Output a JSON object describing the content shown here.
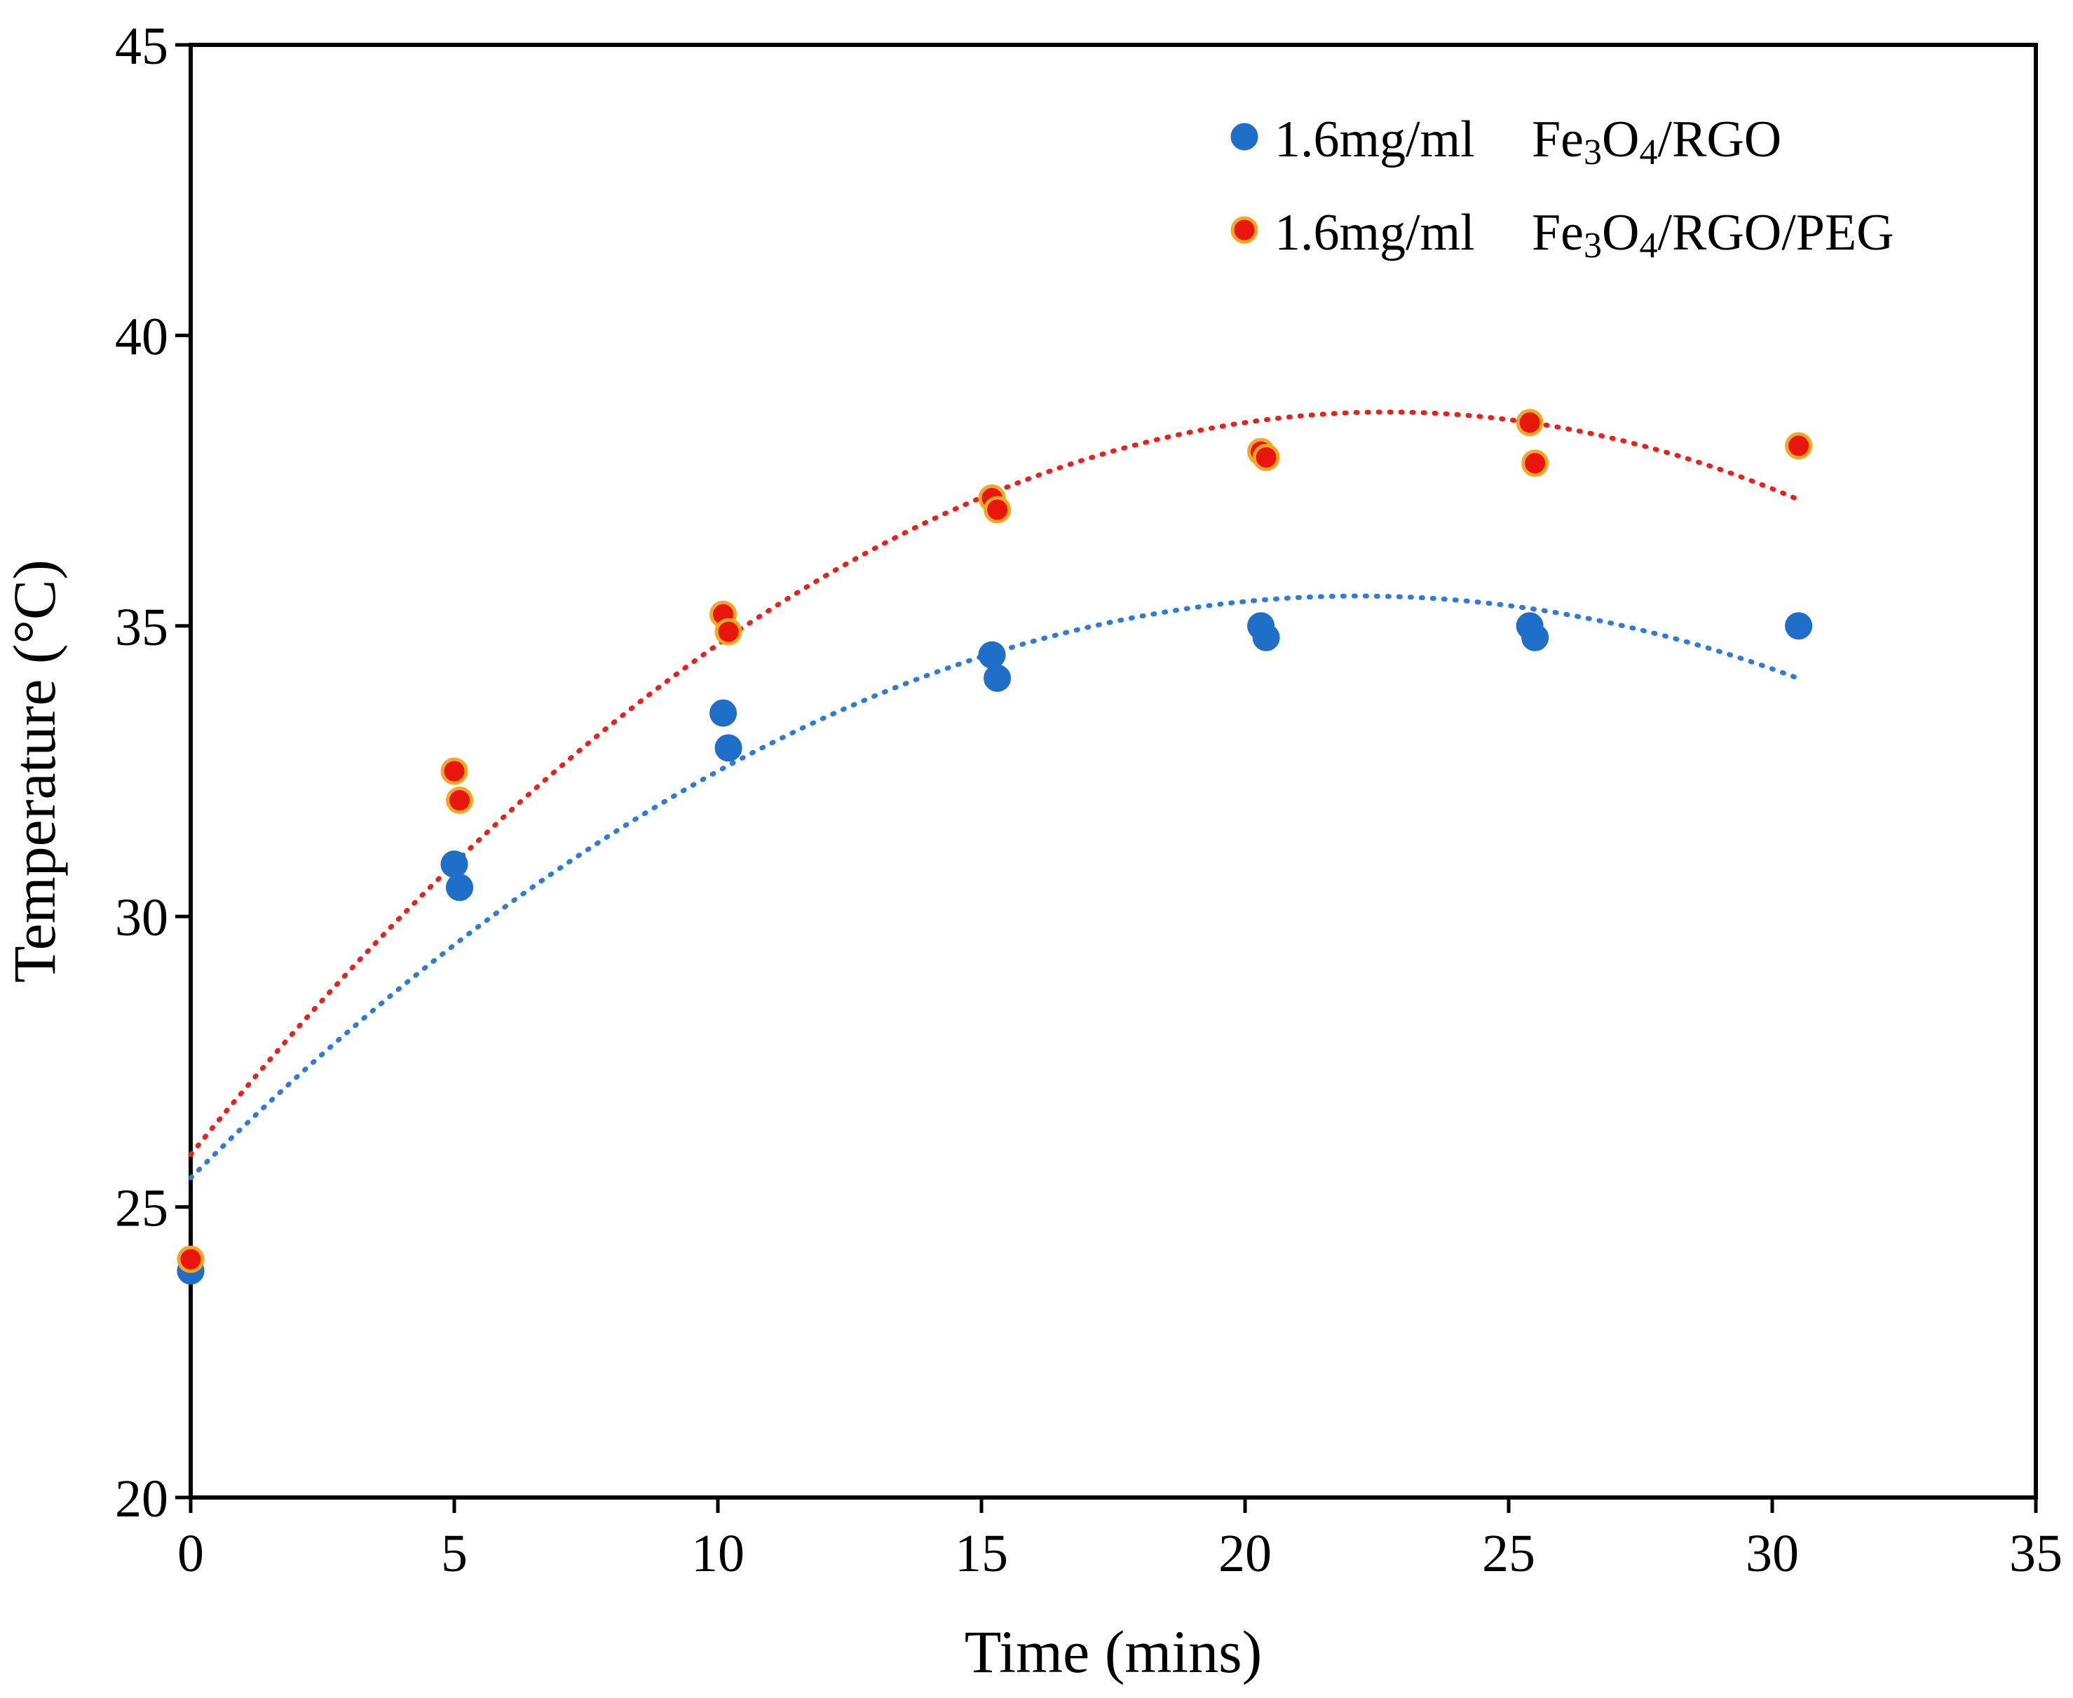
{
  "chart_data": {
    "type": "scatter",
    "title": "",
    "xlabel": "Time (mins)",
    "ylabel": "Temperature (°C)",
    "xlim": [
      0,
      35
    ],
    "ylim": [
      20,
      45
    ],
    "xticks": [
      0,
      5,
      10,
      15,
      20,
      25,
      30,
      35
    ],
    "yticks": [
      20,
      25,
      30,
      35,
      40,
      45
    ],
    "grid": false,
    "legend_position": "top-right",
    "series": [
      {
        "name": "1.6mg/ml Fe3O4/RGO",
        "legend": {
          "prefix": "1.6mg/ml",
          "formula": [
            "Fe",
            "3",
            "O",
            "4",
            "/RGO"
          ]
        },
        "color": "#1f6fc8",
        "marker_edge": "#1f6fc8",
        "trend_color": "#2f7bd6",
        "x": [
          0,
          0,
          5,
          5.1,
          10.1,
          10.2,
          15.2,
          15.3,
          20.3,
          20.4,
          25.4,
          25.5,
          30.5
        ],
        "y": [
          23.9,
          23.9,
          30.9,
          30.5,
          33.5,
          32.9,
          34.5,
          34.1,
          35.0,
          34.8,
          35.0,
          34.8,
          35.0
        ],
        "trendline": {
          "type": "polynomial",
          "coefficients": [
            25.5,
            0.904,
            -0.0204
          ],
          "x_range": [
            0,
            30.5
          ]
        }
      },
      {
        "name": "1.6mg/ml Fe3O4/RGO/PEG",
        "legend": {
          "prefix": "1.6mg/ml",
          "formula": [
            "Fe",
            "3",
            "O",
            "4",
            "/RGO/PEG"
          ]
        },
        "color": "#e8160c",
        "marker_edge": "#f5a623",
        "trend_color": "#e8221a",
        "x": [
          0,
          5,
          5.1,
          10.1,
          10.2,
          15.2,
          15.3,
          20.3,
          20.4,
          25.4,
          25.5,
          30.5
        ],
        "y": [
          24.1,
          32.5,
          32.0,
          35.2,
          34.9,
          37.2,
          37.0,
          38.0,
          37.9,
          38.5,
          37.8,
          38.1
        ],
        "trendline": {
          "type": "polynomial",
          "coefficients": [
            25.9,
            1.126,
            -0.0248
          ],
          "x_range": [
            0,
            30.5
          ]
        }
      }
    ]
  }
}
